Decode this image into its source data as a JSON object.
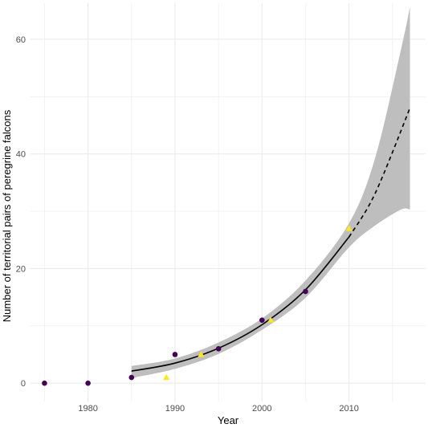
{
  "chart_data": {
    "type": "scatter",
    "title": "",
    "xlabel": "Year",
    "ylabel": "Number of territorial pairs of peregrine falcons",
    "xlim": [
      1973.3,
      2018.8
    ],
    "ylim": [
      -3.2,
      66.3
    ],
    "x_ticks": [
      1980,
      1990,
      2000,
      2010
    ],
    "y_ticks": [
      0,
      20,
      40,
      60
    ],
    "grid": true,
    "legend": "none",
    "colors": {
      "purple": "#440154",
      "yellow": "#FDE725",
      "fit_line": "#000000",
      "ribbon": "#BEBEBE",
      "grid": "#EBEBEB"
    },
    "series": [
      {
        "marker": "circle",
        "color": "#440154",
        "points": [
          [
            1975,
            0
          ],
          [
            1980,
            0
          ],
          [
            1985,
            1
          ],
          [
            1990,
            5
          ],
          [
            1995,
            6
          ],
          [
            2000,
            11
          ],
          [
            2005,
            16
          ]
        ]
      },
      {
        "marker": "triangle",
        "color": "#FDE725",
        "points": [
          [
            1989,
            1
          ],
          [
            1993,
            5
          ],
          [
            2001,
            11
          ],
          [
            2010,
            27
          ]
        ]
      }
    ],
    "fit": {
      "solid": [
        [
          1985,
          2.1
        ],
        [
          1990,
          3.5
        ],
        [
          1995,
          6.1
        ],
        [
          2000,
          10.2
        ],
        [
          2005,
          16.3
        ],
        [
          2010,
          25.5
        ]
      ],
      "dashed": [
        [
          2010,
          25.5
        ],
        [
          2013,
          33.1
        ],
        [
          2017,
          48
        ]
      ],
      "ribbon_lower": [
        [
          1985,
          0.9
        ],
        [
          1990,
          2.5
        ],
        [
          1995,
          5.1
        ],
        [
          2000,
          9.3
        ],
        [
          2005,
          14.9
        ],
        [
          2010,
          23.7
        ],
        [
          2013,
          27.5
        ],
        [
          2016,
          30.3
        ],
        [
          2017,
          30.3
        ]
      ],
      "ribbon_upper": [
        [
          1985,
          3.0
        ],
        [
          1990,
          4.3
        ],
        [
          1995,
          7.1
        ],
        [
          2000,
          11.3
        ],
        [
          2005,
          17.9
        ],
        [
          2010,
          27.9
        ],
        [
          2013,
          39.3
        ],
        [
          2016,
          58.4
        ],
        [
          2017,
          65.6
        ]
      ]
    }
  }
}
